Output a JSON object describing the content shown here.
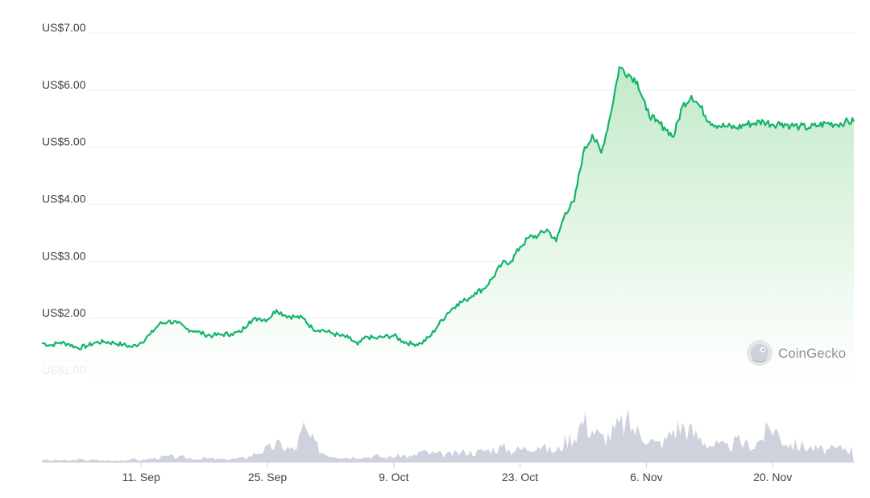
{
  "chart_data": {
    "type": "area",
    "title": "",
    "xlabel": "",
    "ylabel": "",
    "yticks": [
      "US$7.00",
      "US$6.00",
      "US$5.00",
      "US$4.00",
      "US$3.00",
      "US$2.00",
      "US$1.00"
    ],
    "ytick_values": [
      7,
      6,
      5,
      4,
      3,
      2,
      1
    ],
    "ylim": [
      1,
      7
    ],
    "xticks": [
      "11. Sep",
      "25. Sep",
      "9. Oct",
      "23. Oct",
      "6. Nov",
      "20. Nov"
    ],
    "xtick_days": [
      11,
      25,
      39,
      53,
      67,
      81
    ],
    "xlim_days": [
      0,
      90
    ],
    "grid": true,
    "line_color": "#16b36e",
    "fill_color_top": "#bfe9c4",
    "fill_color_bottom": "#ffffff",
    "volume_color": "#c5cad6",
    "series": [
      {
        "x": [
          0,
          1,
          2,
          3,
          4,
          5,
          6,
          7,
          8,
          9,
          10,
          11,
          12,
          13,
          14,
          15,
          16,
          17,
          18,
          19,
          20,
          21,
          22,
          23,
          24,
          25,
          26,
          27,
          28,
          29,
          30,
          31,
          32,
          33,
          34,
          35,
          36,
          37,
          38,
          39,
          40,
          41,
          42,
          43,
          44,
          45,
          46,
          47,
          48,
          49,
          50,
          51,
          52,
          53,
          54,
          55,
          56,
          57,
          58,
          59,
          60,
          61,
          62,
          63,
          64,
          65,
          66,
          67,
          68,
          69,
          70,
          71,
          72,
          73,
          74,
          75,
          76,
          77,
          78,
          79,
          80,
          81,
          82,
          83,
          84,
          85,
          86,
          87,
          88,
          89,
          90
        ],
        "y": [
          1.57,
          1.53,
          1.58,
          1.55,
          1.48,
          1.52,
          1.58,
          1.59,
          1.57,
          1.54,
          1.5,
          1.58,
          1.72,
          1.9,
          1.95,
          1.92,
          1.82,
          1.78,
          1.72,
          1.7,
          1.72,
          1.73,
          1.76,
          1.95,
          2.0,
          1.98,
          2.15,
          2.05,
          2.03,
          2.0,
          1.82,
          1.8,
          1.75,
          1.7,
          1.66,
          1.54,
          1.68,
          1.65,
          1.68,
          1.7,
          1.6,
          1.55,
          1.56,
          1.68,
          1.9,
          2.1,
          2.25,
          2.32,
          2.45,
          2.52,
          2.72,
          2.96,
          3.0,
          3.25,
          3.42,
          3.45,
          3.56,
          3.35,
          3.85,
          4.05,
          4.9,
          5.22,
          4.9,
          5.55,
          6.4,
          6.28,
          6.15,
          5.65,
          5.45,
          5.35,
          5.18,
          5.72,
          5.9,
          5.7,
          5.45,
          5.38,
          5.36,
          5.34,
          5.4,
          5.42,
          5.45,
          5.4,
          5.42,
          5.38,
          5.36,
          5.34,
          5.38,
          5.42,
          5.4,
          5.44,
          5.45
        ]
      }
    ],
    "volume_note": "relative volume",
    "volume": [
      0.05,
      0.03,
      0.04,
      0.03,
      0.05,
      0.04,
      0.04,
      0.03,
      0.03,
      0.04,
      0.05,
      0.04,
      0.06,
      0.08,
      0.1,
      0.09,
      0.08,
      0.06,
      0.07,
      0.06,
      0.05,
      0.06,
      0.07,
      0.1,
      0.18,
      0.22,
      0.3,
      0.25,
      0.2,
      0.55,
      0.35,
      0.18,
      0.12,
      0.1,
      0.08,
      0.1,
      0.09,
      0.11,
      0.08,
      0.1,
      0.12,
      0.09,
      0.18,
      0.15,
      0.14,
      0.13,
      0.15,
      0.18,
      0.16,
      0.2,
      0.22,
      0.25,
      0.2,
      0.22,
      0.25,
      0.3,
      0.22,
      0.18,
      0.35,
      0.45,
      0.7,
      0.55,
      0.4,
      0.45,
      0.6,
      0.65,
      0.5,
      0.45,
      0.3,
      0.35,
      0.55,
      0.6,
      0.5,
      0.4,
      0.3,
      0.28,
      0.25,
      0.35,
      0.3,
      0.28,
      0.45,
      0.6,
      0.4,
      0.3,
      0.28,
      0.25,
      0.22,
      0.2,
      0.22,
      0.25,
      0.2
    ]
  },
  "watermark": {
    "label": "CoinGecko",
    "icon": "gecko-logo-icon"
  }
}
